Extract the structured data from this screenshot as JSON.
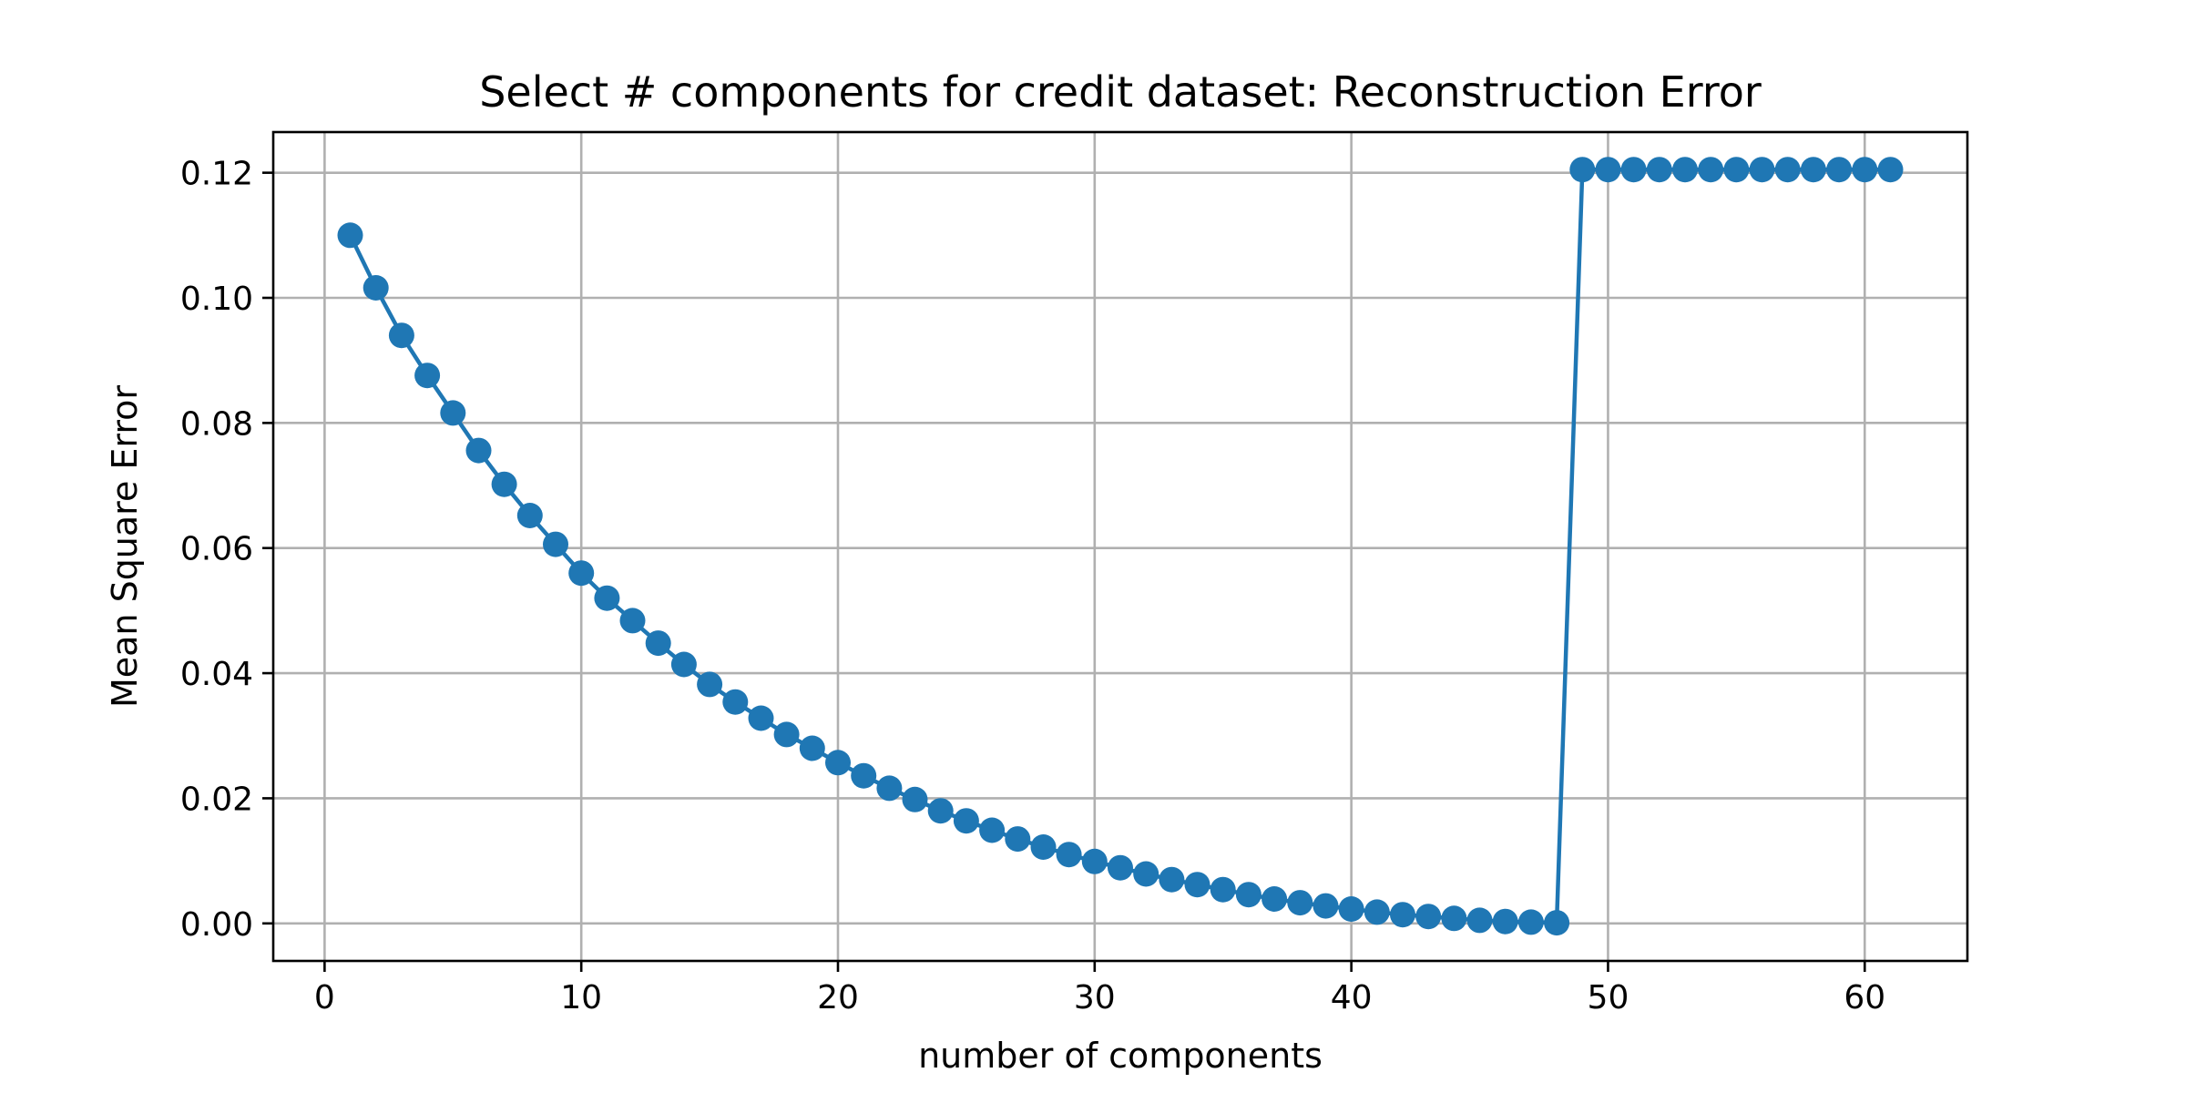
{
  "chart_data": {
    "type": "line",
    "title": "Select # components for credit dataset: Reconstruction Error",
    "xlabel": "number of components",
    "ylabel": "Mean Square Error",
    "xlim": [
      -2,
      64
    ],
    "ylim": [
      -0.006,
      0.1265
    ],
    "xticks": [
      0,
      10,
      20,
      30,
      40,
      50,
      60
    ],
    "xtick_labels": [
      "0",
      "10",
      "20",
      "30",
      "40",
      "50",
      "60"
    ],
    "yticks": [
      0.0,
      0.02,
      0.04,
      0.06,
      0.08,
      0.1,
      0.12
    ],
    "ytick_labels": [
      "0.00",
      "0.02",
      "0.04",
      "0.06",
      "0.08",
      "0.10",
      "0.12"
    ],
    "grid": true,
    "color": "#1f77b4",
    "marker": "circle",
    "series": [
      {
        "x": [
          1,
          2,
          3,
          4,
          5,
          6,
          7,
          8,
          9,
          10,
          11,
          12,
          13,
          14,
          15,
          16,
          17,
          18,
          19,
          20,
          21,
          22,
          23,
          24,
          25,
          26,
          27,
          28,
          29,
          30,
          31,
          32,
          33,
          34,
          35,
          36,
          37,
          38,
          39,
          40,
          41,
          42,
          43,
          44,
          45,
          46,
          47,
          48,
          49,
          50,
          51,
          52,
          53,
          54,
          55,
          56,
          57,
          58,
          59,
          60,
          61
        ],
        "y": [
          0.11,
          0.1016,
          0.094,
          0.0876,
          0.0816,
          0.0756,
          0.0702,
          0.0652,
          0.0606,
          0.056,
          0.052,
          0.0484,
          0.0448,
          0.0414,
          0.0382,
          0.0354,
          0.0328,
          0.0302,
          0.028,
          0.0257,
          0.0236,
          0.0216,
          0.0198,
          0.018,
          0.0164,
          0.0149,
          0.0135,
          0.0122,
          0.011,
          0.0099,
          0.0089,
          0.0079,
          0.007,
          0.0062,
          0.0054,
          0.0046,
          0.0039,
          0.0033,
          0.0028,
          0.0023,
          0.0018,
          0.0014,
          0.0011,
          0.0008,
          0.0005,
          0.0003,
          0.0002,
          0.0001,
          0.1205,
          0.1205,
          0.1205,
          0.1205,
          0.1205,
          0.1205,
          0.1205,
          0.1205,
          0.1205,
          0.1205,
          0.1205,
          0.1205,
          0.1205
        ]
      }
    ]
  }
}
